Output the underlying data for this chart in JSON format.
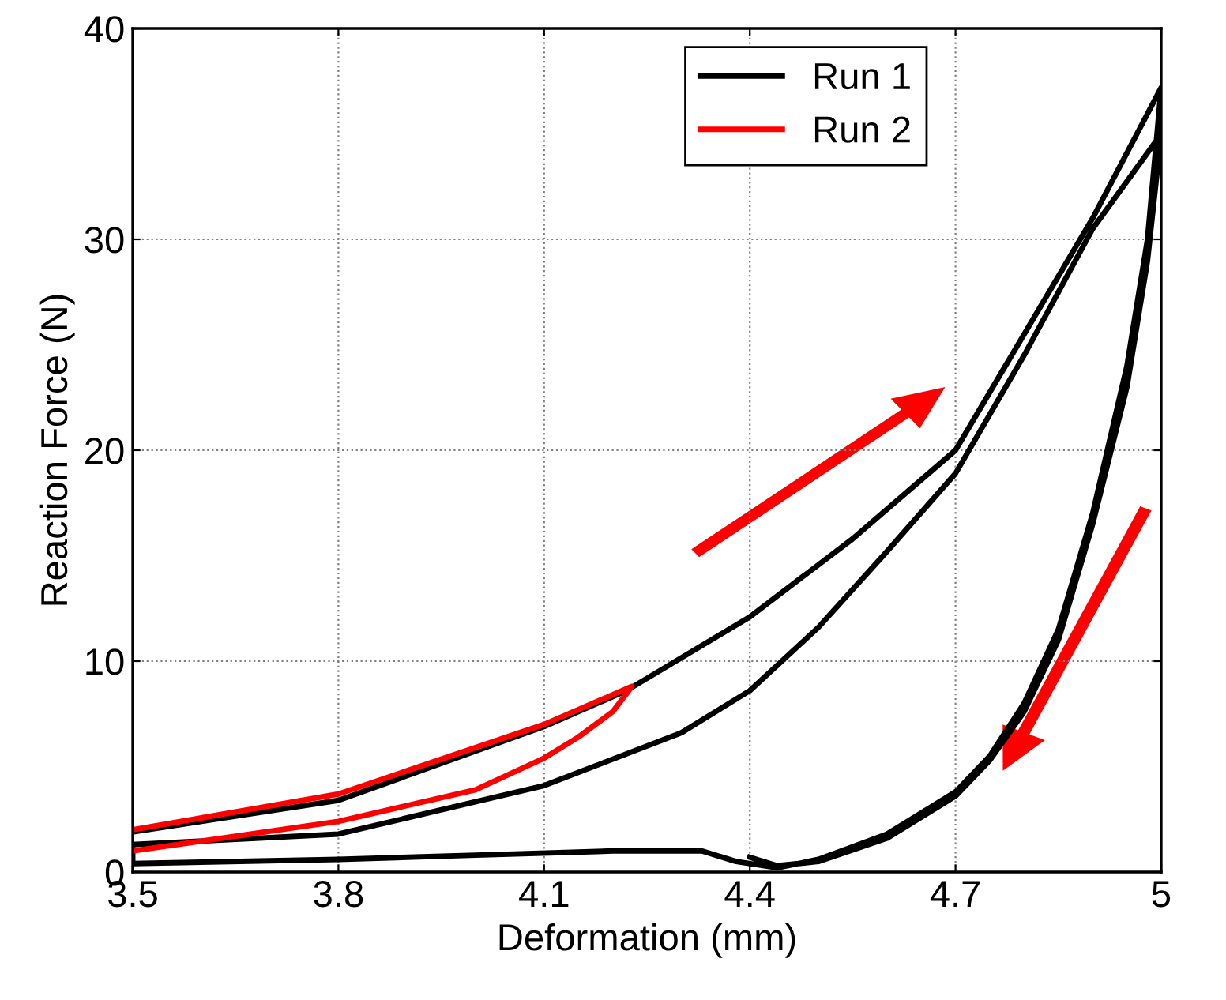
{
  "chart_data": {
    "type": "line",
    "xlabel": "Deformation (mm)",
    "ylabel": "Reaction Force (N)",
    "xlim": [
      3.5,
      5.0
    ],
    "xticks": [
      3.5,
      3.8,
      4.1,
      4.4,
      4.7,
      5
    ],
    "ylim": [
      0,
      40
    ],
    "yticks": [
      0,
      10,
      20,
      30,
      40
    ],
    "grid": true,
    "legend": "top right",
    "line_style": "solid",
    "series": [
      {
        "name": "Run 1",
        "color": "#000000",
        "x": [
          3.5,
          3.8,
          4.1,
          4.22,
          4.4,
          4.55,
          4.7,
          4.8,
          4.9,
          5.0,
          4.98,
          4.95,
          4.9,
          4.85,
          4.8,
          4.75,
          4.7,
          4.6,
          4.5,
          4.44,
          4.38,
          4.33,
          4.2,
          4.0,
          3.8,
          3.5,
          3.5,
          3.8,
          4.1,
          4.3,
          4.4,
          4.5,
          4.6,
          4.7,
          4.8,
          4.9,
          5.0,
          4.98,
          4.95,
          4.9,
          4.85,
          4.8,
          4.75,
          4.7,
          4.6,
          4.5,
          4.44,
          4.4
        ],
        "values": [
          1.9,
          3.4,
          6.9,
          8.6,
          12.1,
          15.8,
          20.0,
          25.5,
          31.0,
          37.2,
          30.0,
          24.0,
          17.0,
          11.5,
          8.0,
          5.5,
          3.8,
          1.8,
          0.6,
          0.2,
          0.5,
          1.0,
          1.0,
          0.8,
          0.6,
          0.4,
          1.3,
          1.8,
          4.1,
          6.6,
          8.6,
          11.6,
          15.2,
          18.9,
          24.5,
          30.5,
          35.0,
          29.0,
          23.0,
          16.5,
          11.0,
          7.6,
          5.3,
          3.6,
          1.6,
          0.5,
          0.3,
          0.7
        ]
      },
      {
        "name": "Run 2",
        "color": "#ff0000",
        "x": [
          3.5,
          3.8,
          4.1,
          4.228,
          4.2,
          4.15,
          4.1,
          4.0,
          3.8,
          3.5
        ],
        "values": [
          2.0,
          3.7,
          7.0,
          8.8,
          7.6,
          6.4,
          5.4,
          3.9,
          2.4,
          1.0
        ]
      }
    ]
  }
}
